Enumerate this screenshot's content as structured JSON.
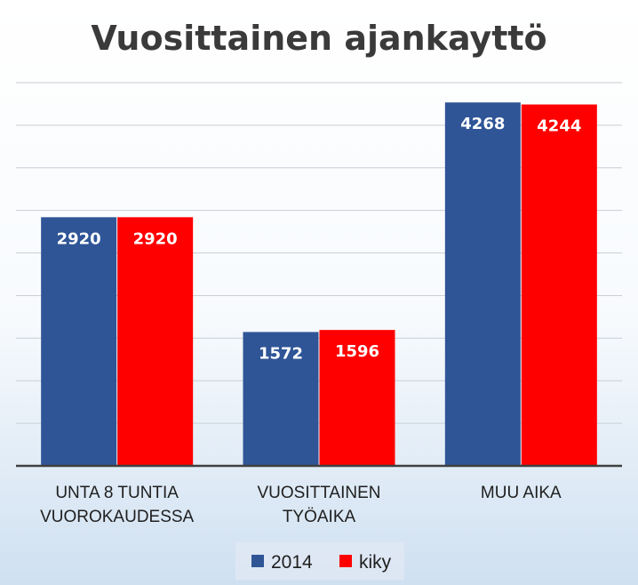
{
  "chart_data": {
    "type": "bar",
    "title": "Vuosittainen ajankayttö",
    "categories": [
      [
        "UNTA 8 TUNTIA",
        "VUOROKAUDESSA"
      ],
      [
        "VUOSITTAINEN",
        "TYÖAIKA"
      ],
      [
        "MUU AIKA"
      ]
    ],
    "series": [
      {
        "name": "2014",
        "color": "#2f5597",
        "values": [
          2920,
          1572,
          4268
        ]
      },
      {
        "name": "kiky",
        "color": "#ff0000",
        "values": [
          2920,
          1596,
          4244
        ]
      }
    ],
    "ylim": [
      0,
      4500
    ],
    "grid": true,
    "legend_position": "bottom",
    "xlabel": "",
    "ylabel": ""
  }
}
